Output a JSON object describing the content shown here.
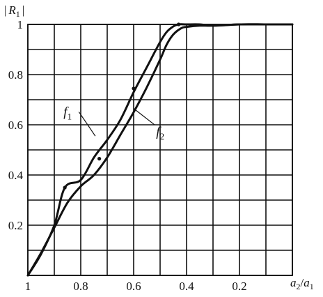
{
  "chart_data": {
    "type": "line",
    "title": "",
    "ylabel_parts": {
      "bar_left": "|",
      "var": "R",
      "sub": "1",
      "bar_right": "|"
    },
    "xlabel_parts": {
      "num": "a",
      "num_sub": "2",
      "slash": "/",
      "den": "a",
      "den_sub": "1"
    },
    "xlim": [
      1.0,
      0.0
    ],
    "ylim": [
      0.0,
      1.0
    ],
    "x_reversed": true,
    "grid": true,
    "x_ticks": [
      1.0,
      0.9,
      0.8,
      0.7,
      0.6,
      0.5,
      0.4,
      0.3,
      0.2,
      0.1,
      0.0
    ],
    "y_ticks": [
      0.0,
      0.1,
      0.2,
      0.3,
      0.4,
      0.5,
      0.6,
      0.7,
      0.8,
      0.9,
      1.0
    ],
    "x_tick_labels": [
      {
        "value": 1.0,
        "text": "1"
      },
      {
        "value": 0.8,
        "text": "0.8"
      },
      {
        "value": 0.6,
        "text": "0.6"
      },
      {
        "value": 0.4,
        "text": "0.4"
      },
      {
        "value": 0.2,
        "text": "0.2"
      }
    ],
    "y_tick_labels": [
      {
        "value": 1.0,
        "text": "1"
      },
      {
        "value": 0.8,
        "text": "0.8"
      },
      {
        "value": 0.6,
        "text": "0.6"
      },
      {
        "value": 0.4,
        "text": "0.4"
      },
      {
        "value": 0.2,
        "text": "0.2"
      }
    ],
    "series": [
      {
        "name": "f",
        "name_sub": "1",
        "x": [
          1.0,
          0.95,
          0.9,
          0.86,
          0.8,
          0.75,
          0.7,
          0.65,
          0.6,
          0.55,
          0.5,
          0.475,
          0.45,
          0.43,
          0.4,
          0.35,
          0.3,
          0.2,
          0.1,
          0.0
        ],
        "y": [
          0.0,
          0.085,
          0.2,
          0.35,
          0.38,
          0.47,
          0.54,
          0.62,
          0.73,
          0.83,
          0.93,
          0.97,
          0.992,
          1.0,
          1.0,
          1.0,
          0.995,
          1.0,
          1.0,
          1.0
        ],
        "markers": [
          [
            0.86,
            0.35
          ],
          [
            0.6,
            0.745
          ],
          [
            0.43,
            1.0
          ]
        ]
      },
      {
        "name": "f",
        "name_sub": "2",
        "x": [
          1.0,
          0.95,
          0.9,
          0.85,
          0.8,
          0.75,
          0.7,
          0.65,
          0.6,
          0.55,
          0.5,
          0.475,
          0.45,
          0.42,
          0.4,
          0.35,
          0.3,
          0.2,
          0.1,
          0.0
        ],
        "y": [
          0.0,
          0.09,
          0.19,
          0.29,
          0.355,
          0.4,
          0.47,
          0.56,
          0.65,
          0.75,
          0.86,
          0.92,
          0.96,
          0.985,
          0.99,
          0.995,
          0.995,
          1.0,
          1.0,
          1.0
        ],
        "markers": [
          [
            0.73,
            0.465
          ]
        ]
      }
    ],
    "curve_label_anchors": [
      {
        "series": 0,
        "label_at": [
          0.865,
          0.635
        ],
        "points_to": [
          0.745,
          0.555
        ]
      },
      {
        "series": 1,
        "label_at": [
          0.515,
          0.555
        ],
        "points_to": [
          0.6,
          0.665
        ]
      }
    ]
  }
}
